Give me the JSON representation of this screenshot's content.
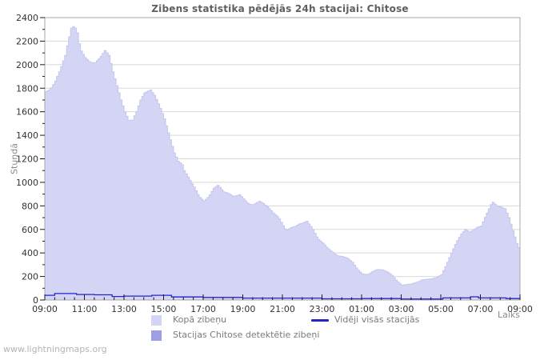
{
  "title": "Zibens statistika pēdējās 24h stacijai: Chitose",
  "watermark": "www.lightningmaps.org",
  "chart_data": {
    "type": "area",
    "title": "Zibens statistika pēdējās 24h stacijai: Chitose",
    "xlabel": "Laiks",
    "ylabel": "Stundā",
    "ylim": [
      0,
      2400
    ],
    "y_major_step": 200,
    "y_minor_step": 100,
    "x_unit": "hours_after_first_tick",
    "x_range_hours": [
      0,
      24
    ],
    "x_major_step_hours": 2,
    "x_minor_step_hours": 0.5,
    "x_tick_labels": [
      "09:00",
      "11:00",
      "13:00",
      "15:00",
      "17:00",
      "19:00",
      "21:00",
      "23:00",
      "01:00",
      "03:00",
      "05:00",
      "07:00",
      "09:00"
    ],
    "grid": "horizontal-major",
    "legend_position": "bottom",
    "frame_color": "#a8a8a8",
    "grid_color": "#d8d8d8",
    "tick_color": "#1a1a1a",
    "series": [
      {
        "name": "Kopā zibeņu",
        "type": "area",
        "color": "#d4d4f4",
        "edge_color": "#c6c6ee",
        "points": [
          [
            0,
            1770
          ],
          [
            0.25,
            1790
          ],
          [
            0.5,
            1860
          ],
          [
            0.75,
            1960
          ],
          [
            1,
            2080
          ],
          [
            1.15,
            2200
          ],
          [
            1.3,
            2310
          ],
          [
            1.45,
            2330
          ],
          [
            1.6,
            2270
          ],
          [
            1.75,
            2130
          ],
          [
            2,
            2060
          ],
          [
            2.25,
            2020
          ],
          [
            2.5,
            2015
          ],
          [
            2.75,
            2060
          ],
          [
            3,
            2120
          ],
          [
            3.2,
            2080
          ],
          [
            3.4,
            1940
          ],
          [
            3.6,
            1820
          ],
          [
            3.8,
            1700
          ],
          [
            4,
            1600
          ],
          [
            4.2,
            1525
          ],
          [
            4.4,
            1530
          ],
          [
            4.6,
            1600
          ],
          [
            4.8,
            1700
          ],
          [
            5,
            1760
          ],
          [
            5.3,
            1785
          ],
          [
            5.5,
            1740
          ],
          [
            5.75,
            1650
          ],
          [
            6,
            1540
          ],
          [
            6.25,
            1390
          ],
          [
            6.5,
            1250
          ],
          [
            6.7,
            1180
          ],
          [
            6.9,
            1150
          ],
          [
            7,
            1100
          ],
          [
            7.25,
            1030
          ],
          [
            7.5,
            960
          ],
          [
            7.75,
            880
          ],
          [
            8,
            840
          ],
          [
            8.25,
            880
          ],
          [
            8.5,
            950
          ],
          [
            8.7,
            975
          ],
          [
            9,
            920
          ],
          [
            9.25,
            905
          ],
          [
            9.5,
            880
          ],
          [
            9.8,
            895
          ],
          [
            10,
            860
          ],
          [
            10.25,
            815
          ],
          [
            10.5,
            810
          ],
          [
            10.8,
            840
          ],
          [
            11,
            820
          ],
          [
            11.25,
            785
          ],
          [
            11.5,
            740
          ],
          [
            11.75,
            705
          ],
          [
            12,
            630
          ],
          [
            12.15,
            590
          ],
          [
            12.4,
            615
          ],
          [
            12.6,
            625
          ],
          [
            12.8,
            645
          ],
          [
            13,
            655
          ],
          [
            13.2,
            670
          ],
          [
            13.5,
            600
          ],
          [
            13.75,
            520
          ],
          [
            14,
            485
          ],
          [
            14.25,
            440
          ],
          [
            14.5,
            405
          ],
          [
            14.75,
            375
          ],
          [
            15,
            370
          ],
          [
            15.25,
            355
          ],
          [
            15.5,
            320
          ],
          [
            15.75,
            260
          ],
          [
            16,
            222
          ],
          [
            16.25,
            215
          ],
          [
            16.5,
            240
          ],
          [
            16.75,
            260
          ],
          [
            17,
            256
          ],
          [
            17.25,
            240
          ],
          [
            17.5,
            210
          ],
          [
            17.75,
            160
          ],
          [
            18,
            126
          ],
          [
            18.25,
            132
          ],
          [
            18.5,
            138
          ],
          [
            18.75,
            150
          ],
          [
            19,
            170
          ],
          [
            19.25,
            176
          ],
          [
            19.5,
            180
          ],
          [
            19.75,
            190
          ],
          [
            20,
            215
          ],
          [
            20.25,
            300
          ],
          [
            20.5,
            400
          ],
          [
            20.75,
            490
          ],
          [
            21,
            560
          ],
          [
            21.2,
            600
          ],
          [
            21.4,
            578
          ],
          [
            21.6,
            592
          ],
          [
            21.8,
            618
          ],
          [
            22,
            628
          ],
          [
            22.25,
            720
          ],
          [
            22.5,
            812
          ],
          [
            22.6,
            830
          ],
          [
            22.8,
            800
          ],
          [
            23,
            790
          ],
          [
            23.2,
            775
          ],
          [
            23.4,
            700
          ],
          [
            23.6,
            590
          ],
          [
            23.8,
            480
          ],
          [
            24,
            410
          ]
        ]
      },
      {
        "name": "Stacijas Chitose detektētie zibeņi",
        "type": "area",
        "color": "#9e9ee4",
        "edge_color": "#9e9ee4",
        "points": [
          [
            0,
            0
          ],
          [
            24,
            0
          ]
        ]
      },
      {
        "name": "Vidēji visās stacijās",
        "type": "line",
        "step": true,
        "color": "#2424cc",
        "points": [
          [
            0,
            40
          ],
          [
            0.5,
            55
          ],
          [
            1.6,
            47
          ],
          [
            2.5,
            44
          ],
          [
            3.4,
            30
          ],
          [
            4,
            33
          ],
          [
            5.4,
            40
          ],
          [
            6.4,
            26
          ],
          [
            8,
            22
          ],
          [
            10,
            16
          ],
          [
            14,
            10
          ],
          [
            16,
            12
          ],
          [
            18,
            8
          ],
          [
            20.1,
            18
          ],
          [
            21.5,
            27
          ],
          [
            21.9,
            18
          ],
          [
            23.3,
            12
          ],
          [
            24,
            10
          ]
        ]
      }
    ]
  }
}
